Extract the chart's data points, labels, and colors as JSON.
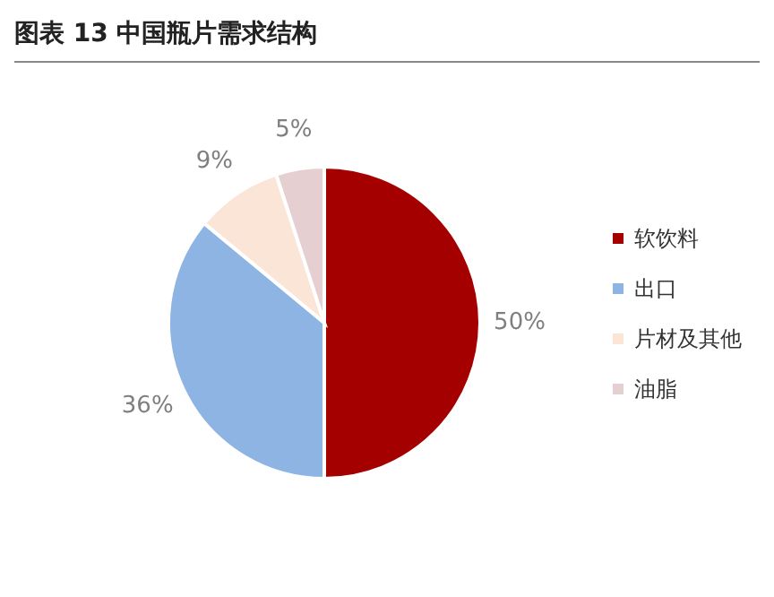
{
  "chart_data": {
    "type": "pie",
    "title": "图表 13 中国瓶片需求结构",
    "categories": [
      "软饮料",
      "出口",
      "片材及其他",
      "油脂"
    ],
    "values": [
      50,
      36,
      9,
      5
    ],
    "colors": [
      "#a50000",
      "#8eb4e3",
      "#fbe5d6",
      "#e6cfd0"
    ],
    "value_labels": [
      "50%",
      "36%",
      "9%",
      "5%"
    ],
    "legend": "right"
  }
}
